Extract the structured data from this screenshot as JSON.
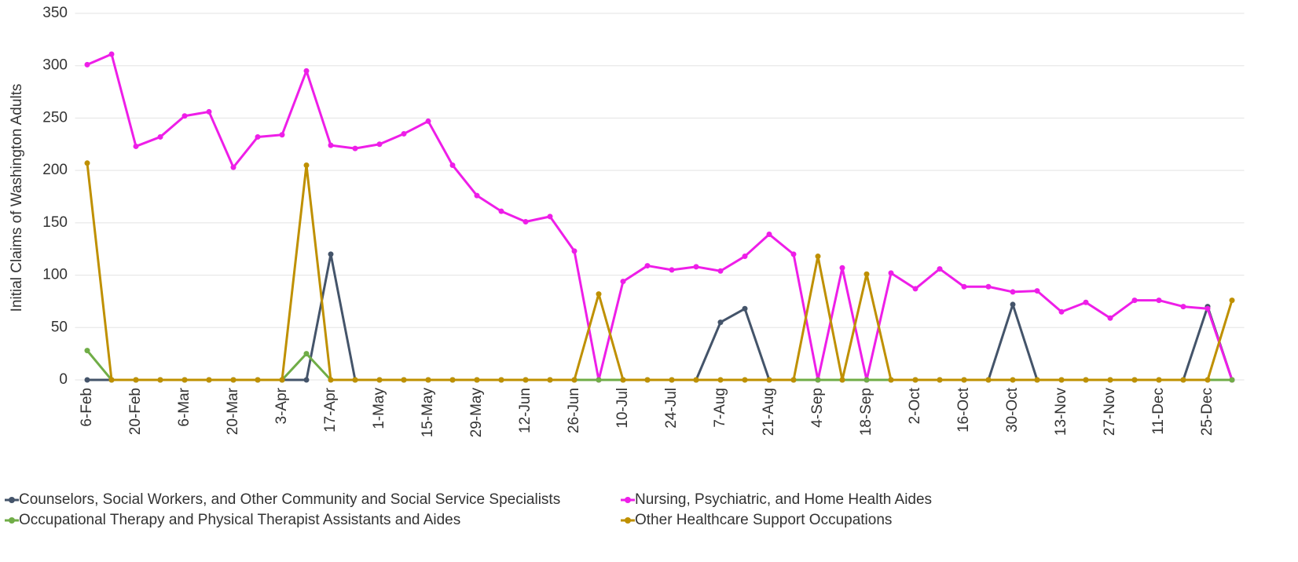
{
  "chart_data": {
    "type": "line",
    "y_label": "Initial Claims of Washington Adults",
    "categories": [
      "6-Feb",
      null,
      "20-Feb",
      null,
      "6-Mar",
      null,
      "20-Mar",
      null,
      "3-Apr",
      null,
      "17-Apr",
      null,
      "1-May",
      null,
      "15-May",
      null,
      "29-May",
      null,
      "12-Jun",
      null,
      "26-Jun",
      null,
      "10-Jul",
      null,
      "24-Jul",
      null,
      "7-Aug",
      null,
      "21-Aug",
      null,
      "4-Sep",
      null,
      "18-Sep",
      null,
      "2-Oct",
      null,
      "16-Oct",
      null,
      "30-Oct",
      null,
      "13-Nov",
      null,
      "27-Nov",
      null,
      "11-Dec",
      null,
      "25-Dec",
      null
    ],
    "series": [
      {
        "name": "Counselors, Social Workers, and Other Community and Social Service Specialists",
        "color": "#44546a",
        "values": [
          0,
          0,
          0,
          0,
          0,
          0,
          0,
          0,
          0,
          0,
          120,
          0,
          0,
          0,
          0,
          0,
          0,
          0,
          0,
          0,
          0,
          0,
          0,
          0,
          0,
          0,
          55,
          68,
          0,
          0,
          0,
          0,
          0,
          0,
          0,
          0,
          0,
          0,
          72,
          0,
          0,
          0,
          0,
          0,
          0,
          0,
          70,
          0
        ]
      },
      {
        "name": "Nursing, Psychiatric, and Home Health Aides",
        "color": "#ee1ee8",
        "values": [
          301,
          311,
          223,
          232,
          252,
          256,
          203,
          232,
          234,
          295,
          224,
          221,
          225,
          235,
          247,
          205,
          176,
          161,
          151,
          156,
          123,
          0,
          94,
          109,
          105,
          108,
          104,
          118,
          139,
          120,
          0,
          107,
          0,
          102,
          87,
          106,
          89,
          89,
          84,
          85,
          65,
          74,
          59,
          76,
          76,
          70,
          68,
          0
        ]
      },
      {
        "name": "Occupational Therapy and Physical Therapist Assistants and Aides",
        "color": "#70ad47",
        "values": [
          28,
          0,
          0,
          0,
          0,
          0,
          0,
          0,
          0,
          25,
          0,
          0,
          0,
          0,
          0,
          0,
          0,
          0,
          0,
          0,
          0,
          0,
          0,
          0,
          0,
          0,
          0,
          0,
          0,
          0,
          0,
          0,
          0,
          0,
          0,
          0,
          0,
          0,
          0,
          0,
          0,
          0,
          0,
          0,
          0,
          0,
          0,
          0
        ]
      },
      {
        "name": "Other Healthcare Support Occupations",
        "color": "#bf9000",
        "values": [
          207,
          0,
          0,
          0,
          0,
          0,
          0,
          0,
          0,
          205,
          0,
          0,
          0,
          0,
          0,
          0,
          0,
          0,
          0,
          0,
          0,
          82,
          0,
          0,
          0,
          0,
          0,
          0,
          0,
          0,
          118,
          0,
          101,
          0,
          0,
          0,
          0,
          0,
          0,
          0,
          0,
          0,
          0,
          0,
          0,
          0,
          0,
          76
        ]
      }
    ],
    "ylim": [
      0,
      350
    ],
    "yticks": [
      0,
      50,
      100,
      150,
      200,
      250,
      300,
      350
    ],
    "grid": true
  }
}
